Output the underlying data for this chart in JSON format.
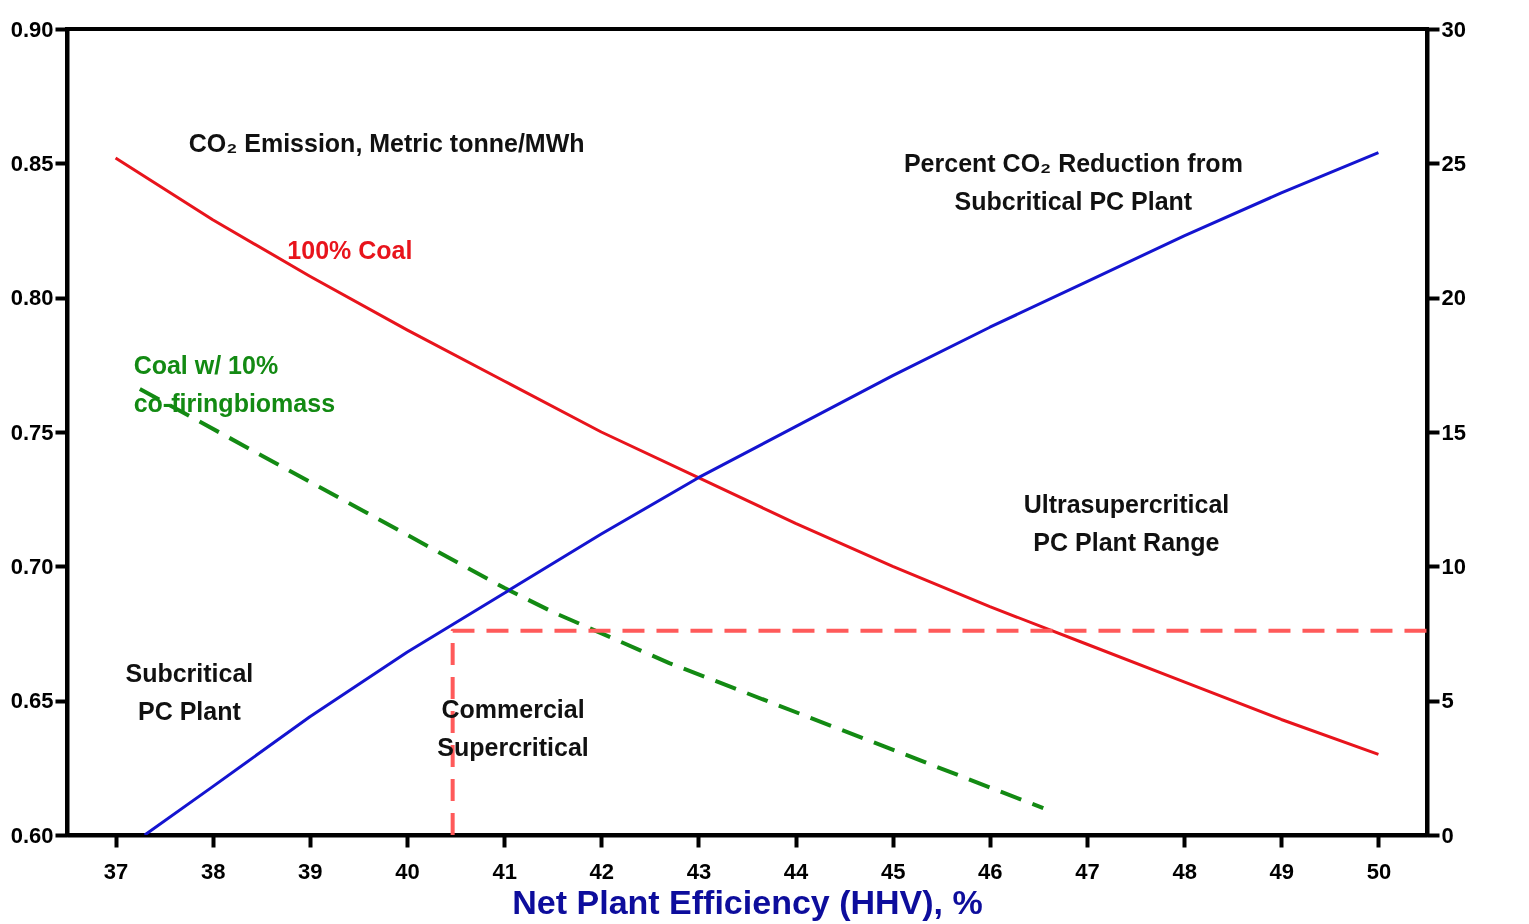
{
  "chart_data": {
    "type": "line",
    "xlabel": "Net Plant Efficiency (HHV), %",
    "xlim": [
      36.5,
      50.5
    ],
    "xticks": [
      37,
      38,
      39,
      40,
      41,
      42,
      43,
      44,
      45,
      46,
      47,
      48,
      49,
      50
    ],
    "ylim": [
      0.6,
      0.9
    ],
    "yticks": [
      {
        "value": 0.6,
        "label": "0.60"
      },
      0.65,
      {
        "value": 0.7,
        "label": "0.70"
      },
      0.75,
      {
        "value": 0.8,
        "label": "0.80"
      },
      0.85,
      {
        "value": 0.9,
        "label": "0.90"
      }
    ],
    "y2lim": [
      0,
      30
    ],
    "y2ticks": [
      0,
      5,
      10,
      15,
      20,
      25,
      30
    ],
    "grid": false,
    "marker": "none",
    "series": [
      {
        "color": "#e8141c",
        "line_style": "solid",
        "x": [
          37,
          38,
          39,
          40,
          41,
          42,
          43,
          44,
          45,
          46,
          47,
          48,
          49,
          50
        ],
        "values": [
          0.852,
          0.829,
          0.808,
          0.788,
          0.769,
          0.75,
          0.733,
          0.716,
          0.7,
          0.685,
          0.671,
          0.657,
          0.643,
          0.63
        ]
      },
      {
        "color": "#138a13",
        "line_style": "dashed",
        "x": [
          37.25,
          41.0,
          41.5,
          42.7,
          46.55
        ],
        "values": [
          0.766,
          0.692,
          0.683,
          0.664,
          0.61
        ]
      },
      {
        "color": "#ff5a5a",
        "line_style": "dashed",
        "x": [
          40.47,
          40.47,
          50.5
        ],
        "values": [
          0.6,
          0.676,
          0.676
        ]
      },
      {
        "color": "#1414d0",
        "line_style": "solid",
        "axis": "y2",
        "x": [
          37.3,
          38,
          39,
          40,
          41,
          42,
          43,
          44,
          45,
          46,
          47,
          48,
          49,
          50
        ],
        "values": [
          0,
          1.8,
          4.4,
          6.8,
          9.0,
          11.2,
          13.3,
          15.2,
          17.1,
          18.9,
          20.6,
          22.3,
          23.9,
          25.4
        ]
      }
    ],
    "annotations": [
      "CO₂ Emission, Metric tonne/MWh",
      "Percent CO₂ Reduction from\nSubcritical PC Plant",
      "100% Coal",
      "Coal w/ 10%\nco-firingbiomass",
      "Subcritical\nPC Plant",
      "Commercial\nSupercritical",
      "Ultrasupercritical\nPC Plant Range"
    ]
  }
}
